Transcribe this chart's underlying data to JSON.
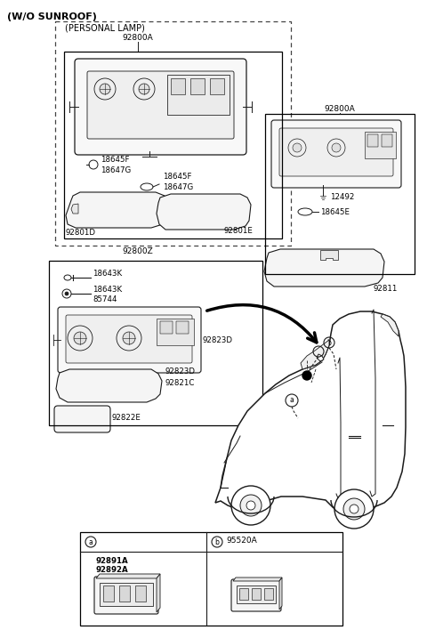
{
  "bg_color": "#ffffff",
  "lc": "#1a1a1a",
  "title": "(W/O SUNROOF)",
  "personal_lamp": "(PERSONAL LAMP)",
  "num_92800A": "92800A",
  "num_92800Z": "92800Z",
  "num_18645F_1": "18645F",
  "num_18647G_1": "18647G",
  "num_18645F_2": "18645F",
  "num_18647G_2": "18647G",
  "num_92801E": "92801E",
  "num_92801D": "92801D",
  "num_12492": "12492",
  "num_18645E": "18645E",
  "num_92811": "92811",
  "num_18643K_1": "18643K",
  "num_18643K_2": "18643K",
  "num_85744": "85744",
  "num_92823D": "92823D",
  "num_92821C": "92821C",
  "num_92822E": "92822E",
  "num_92891A": "92891A",
  "num_92892A": "92892A",
  "num_95520A": "95520A",
  "label_a": "a",
  "label_b": "b"
}
